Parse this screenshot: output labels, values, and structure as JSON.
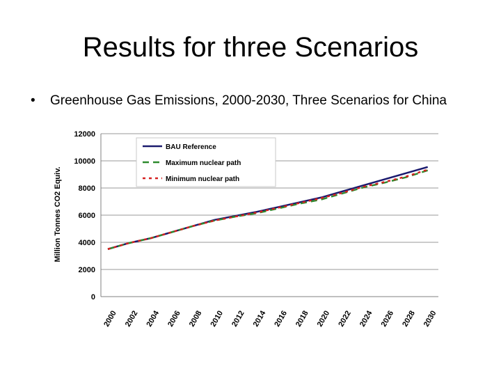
{
  "slide": {
    "title": "Results for three Scenarios",
    "bullet_marker": "•",
    "bullet_text": "Greenhouse Gas Emissions, 2000-2030, Three Scenarios for China"
  },
  "chart_data": {
    "type": "line",
    "title": "",
    "xlabel": "",
    "ylabel": "Million Tonnes CO2 Equiv.",
    "x": [
      2000,
      2002,
      2004,
      2006,
      2008,
      2010,
      2012,
      2014,
      2016,
      2018,
      2020,
      2022,
      2024,
      2026,
      2028,
      2030
    ],
    "x_tick_labels": [
      "2000",
      "2002",
      "2004",
      "2006",
      "2008",
      "2010",
      "2012",
      "2014",
      "2016",
      "2018",
      "2020",
      "2022",
      "2024",
      "2026",
      "2028",
      "2030"
    ],
    "xlim": [
      2000,
      2031
    ],
    "ylim": [
      0,
      12000
    ],
    "y_ticks": [
      0,
      2000,
      4000,
      6000,
      8000,
      10000,
      12000
    ],
    "y_tick_labels": [
      "0",
      "2000",
      "4000",
      "6000",
      "8000",
      "10000",
      "12000"
    ],
    "grid": "horizontal",
    "legend_position": "top-left",
    "series": [
      {
        "name": "BAU Reference",
        "color": "#1a1a6e",
        "style": "solid",
        "values": [
          3500,
          3950,
          4300,
          4750,
          5200,
          5650,
          5950,
          6250,
          6600,
          6950,
          7300,
          7750,
          8200,
          8650,
          9100,
          9550
        ]
      },
      {
        "name": "Maximum nuclear path",
        "color": "#2e8b2e",
        "style": "dashed",
        "values": [
          3500,
          3950,
          4300,
          4750,
          5200,
          5600,
          5900,
          6150,
          6500,
          6850,
          7150,
          7600,
          8050,
          8400,
          8800,
          9300
        ]
      },
      {
        "name": "Minimum nuclear path",
        "color": "#d62020",
        "style": "dotted",
        "values": [
          3500,
          3950,
          4300,
          4750,
          5200,
          5600,
          5900,
          6200,
          6550,
          6900,
          7250,
          7650,
          8100,
          8450,
          8850,
          9350
        ]
      }
    ]
  }
}
